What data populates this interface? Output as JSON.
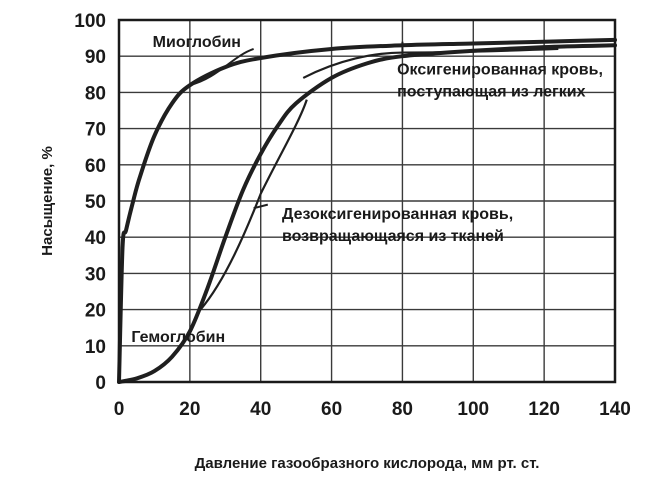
{
  "chart_data": {
    "type": "line",
    "title": "",
    "xlabel": "Давление газообразного кислорода, мм рт. ст.",
    "ylabel": "Насыщение, %",
    "xlim": [
      0,
      140
    ],
    "ylim": [
      0,
      100
    ],
    "xticks": [
      0,
      20,
      40,
      60,
      80,
      100,
      120,
      140
    ],
    "yticks": [
      0,
      10,
      20,
      30,
      40,
      50,
      60,
      70,
      80,
      90,
      100
    ],
    "grid": true,
    "series": [
      {
        "name": "Миоглобин",
        "x": [
          0,
          1,
          2,
          4,
          6,
          10,
          15,
          20,
          30,
          40,
          60,
          80,
          100,
          120,
          140
        ],
        "y": [
          0,
          37,
          42,
          50,
          57,
          68,
          77,
          82,
          87,
          89.5,
          92,
          93,
          93.5,
          94,
          94.5
        ]
      },
      {
        "name": "Гемоглобин",
        "x": [
          0,
          5,
          10,
          15,
          20,
          25,
          30,
          35,
          40,
          45,
          50,
          60,
          70,
          80,
          100,
          120,
          140
        ],
        "y": [
          0,
          1,
          3,
          7,
          14,
          26,
          40,
          53,
          63,
          71,
          77,
          84,
          88,
          90,
          91.5,
          92.5,
          93
        ]
      }
    ],
    "annotations": [
      {
        "key": "myoglobin",
        "lines": [
          "Миоглобин"
        ]
      },
      {
        "key": "oxy",
        "lines": [
          "Оксигенированная кровь,",
          "поступающая из легких"
        ]
      },
      {
        "key": "deoxy",
        "lines": [
          "Дезоксигенированная кровь,",
          "возвращающаяся из тканей"
        ]
      },
      {
        "key": "hemoglobin",
        "lines": [
          "Гемоглобин"
        ]
      }
    ]
  },
  "style": {
    "line_color": "#1f1f1f",
    "axis_color": "#1a1a1a",
    "background": "#ffffff"
  }
}
